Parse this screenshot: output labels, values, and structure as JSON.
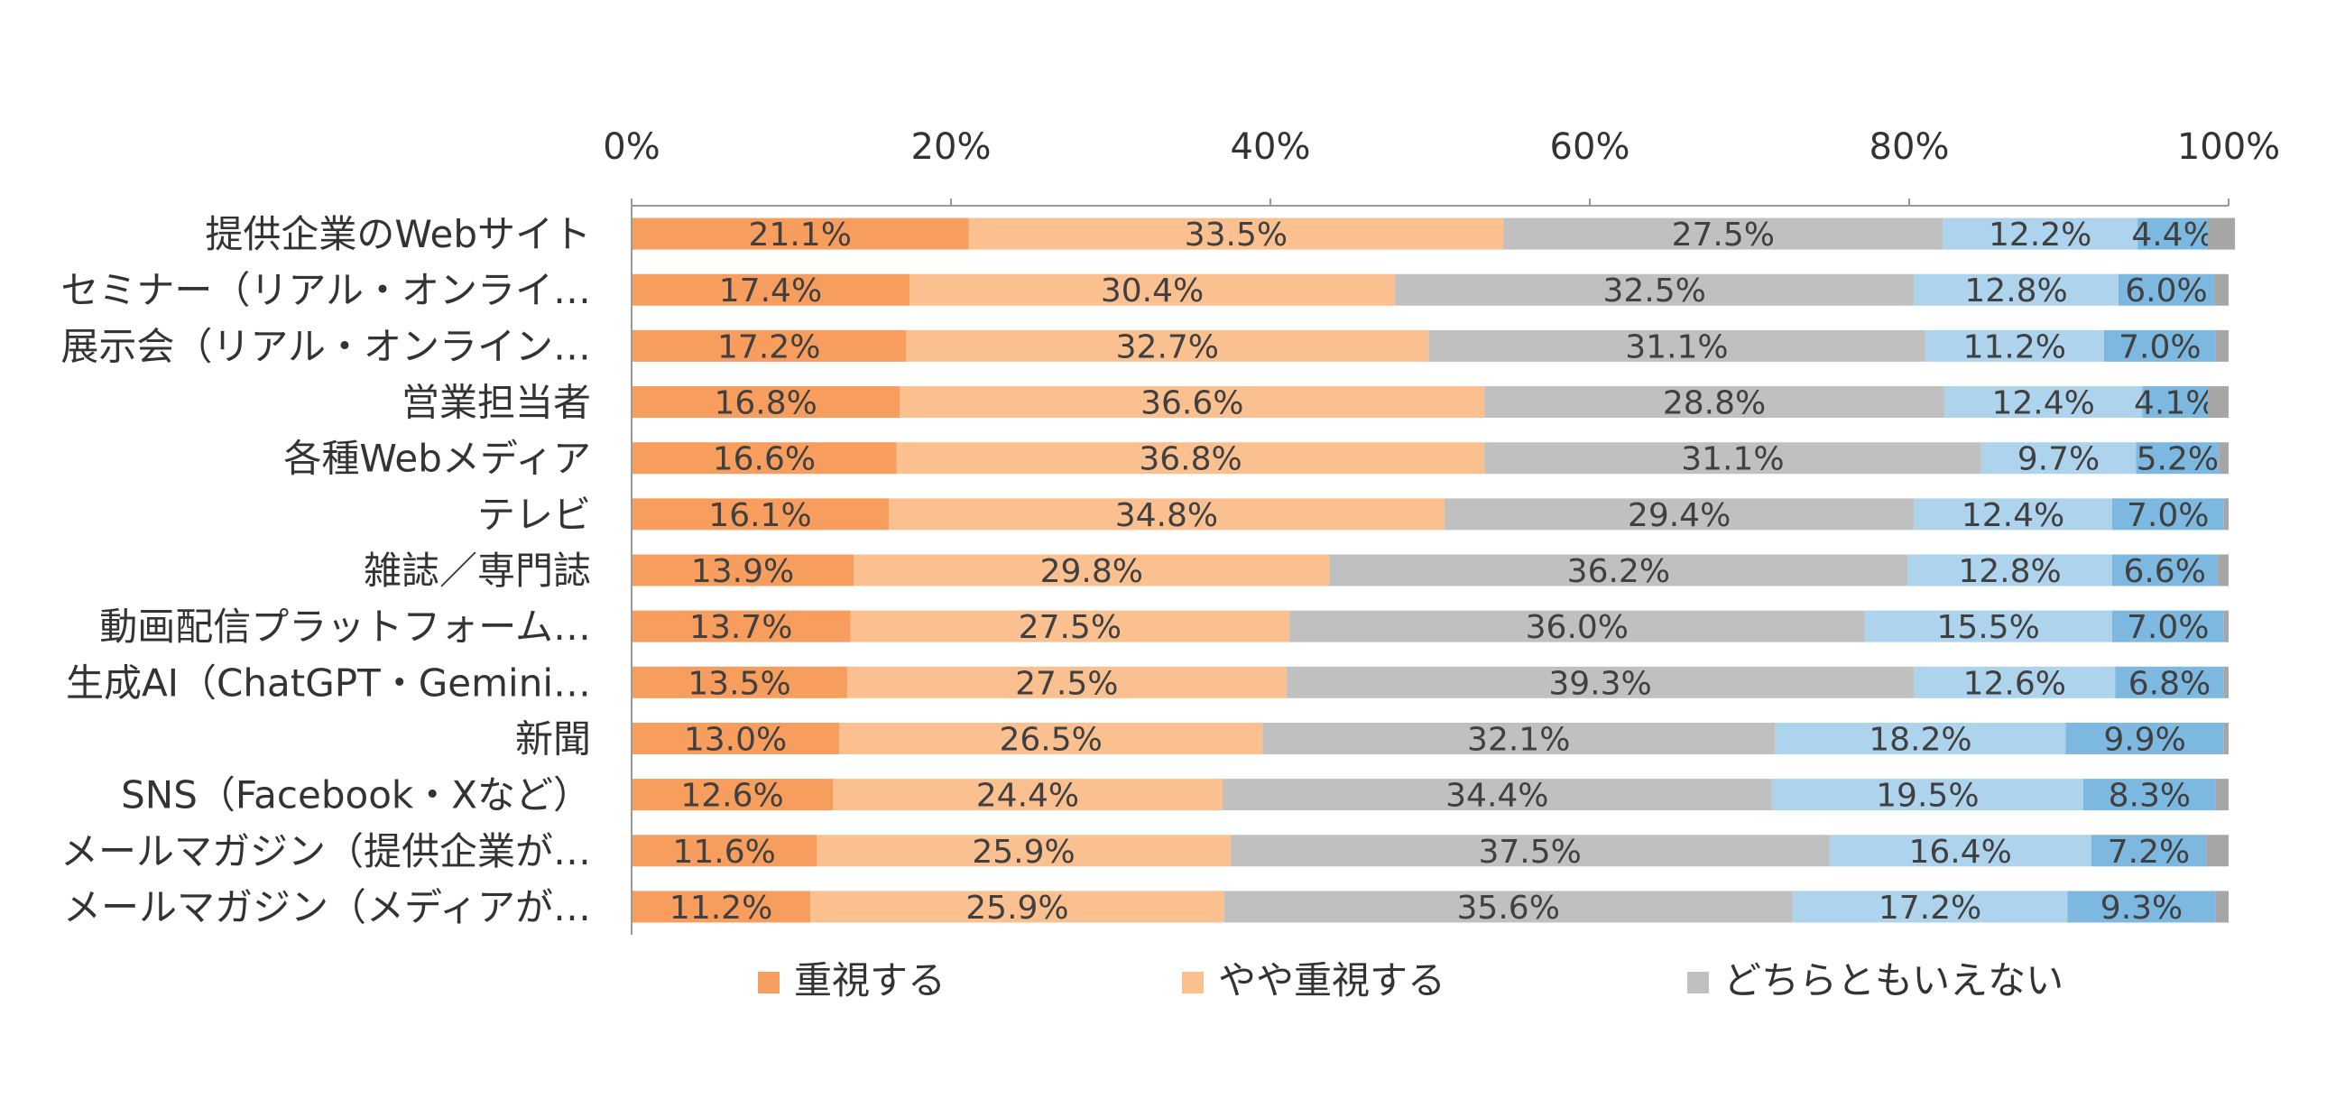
{
  "chart_data": {
    "type": "bar",
    "orientation": "horizontal",
    "stacked": "percent",
    "categories": [
      "提供企業のWebサイト",
      "セミナー（リアル・オンライ…",
      "展示会（リアル・オンライン…",
      "営業担当者",
      "各種Webメディア",
      "テレビ",
      "雑誌／専門誌",
      "動画配信プラットフォーム…",
      "生成AI（ChatGPT・Gemini…",
      "新聞",
      "SNS（Facebook・Xなど）",
      "メールマガジン（提供企業が…",
      "メールマガジン（メディアが…"
    ],
    "series": [
      {
        "name": "重視する",
        "color": "#F79E5E",
        "values": [
          21.1,
          17.4,
          17.2,
          16.8,
          16.6,
          16.1,
          13.9,
          13.7,
          13.5,
          13.0,
          12.6,
          11.6,
          11.2
        ],
        "labels": [
          "21.1%",
          "17.4%",
          "17.2%",
          "16.8%",
          "16.6%",
          "16.1%",
          "13.9%",
          "13.7%",
          "13.5%",
          "13.0%",
          "12.6%",
          "11.6%",
          "11.2%"
        ]
      },
      {
        "name": "やや重視する",
        "color": "#FBC08F",
        "values": [
          33.5,
          30.4,
          32.7,
          36.6,
          36.8,
          34.8,
          29.8,
          27.5,
          27.5,
          26.5,
          24.4,
          25.9,
          25.9
        ],
        "labels": [
          "33.5%",
          "30.4%",
          "32.7%",
          "36.6%",
          "36.8%",
          "34.8%",
          "29.8%",
          "27.5%",
          "27.5%",
          "26.5%",
          "24.4%",
          "25.9%",
          "25.9%"
        ]
      },
      {
        "name": "どちらともいえない",
        "color": "#C0C0C0",
        "values": [
          27.5,
          32.5,
          31.1,
          28.8,
          31.1,
          29.4,
          36.2,
          36.0,
          39.3,
          32.1,
          34.4,
          37.5,
          35.6
        ],
        "labels": [
          "27.5%",
          "32.5%",
          "31.1%",
          "28.8%",
          "31.1%",
          "29.4%",
          "36.2%",
          "36.0%",
          "39.3%",
          "32.1%",
          "34.4%",
          "37.5%",
          "35.6%"
        ]
      },
      {
        "color": "#AED3EC",
        "values": [
          12.2,
          12.8,
          11.2,
          12.4,
          9.7,
          12.4,
          12.8,
          15.5,
          12.6,
          18.2,
          19.5,
          16.4,
          17.2
        ],
        "labels": [
          "12.2%",
          "12.8%",
          "11.2%",
          "12.4%",
          "9.7%",
          "12.4%",
          "12.8%",
          "15.5%",
          "12.6%",
          "18.2%",
          "19.5%",
          "16.4%",
          "17.2%"
        ]
      },
      {
        "color": "#7DB8E0",
        "values": [
          4.4,
          6.0,
          7.0,
          4.1,
          5.2,
          7.0,
          6.6,
          7.0,
          6.8,
          9.9,
          8.3,
          7.2,
          9.3
        ],
        "labels": [
          "4.4%",
          "6.0%",
          "7.0%",
          "4.1%",
          "5.2%",
          "7.0%",
          "6.6%",
          "7.0%",
          "6.8%",
          "9.9%",
          "8.3%",
          "7.2%",
          "9.3%"
        ]
      },
      {
        "color": "#A6A6A6",
        "values": [
          1.7,
          0.9,
          0.8,
          1.3,
          0.6,
          0.3,
          0.7,
          0.3,
          0.3,
          0.3,
          0.8,
          1.4,
          0.8
        ],
        "labels": []
      }
    ],
    "x_ticks": [
      "0%",
      "20%",
      "40%",
      "60%",
      "80%",
      "100%"
    ],
    "xlim": [
      0,
      100
    ],
    "grid": true,
    "legend": {
      "position": "bottom",
      "entries": [
        "重視する",
        "やや重視する",
        "どちらともいえない"
      ]
    },
    "title": "",
    "xlabel": "",
    "ylabel": ""
  }
}
